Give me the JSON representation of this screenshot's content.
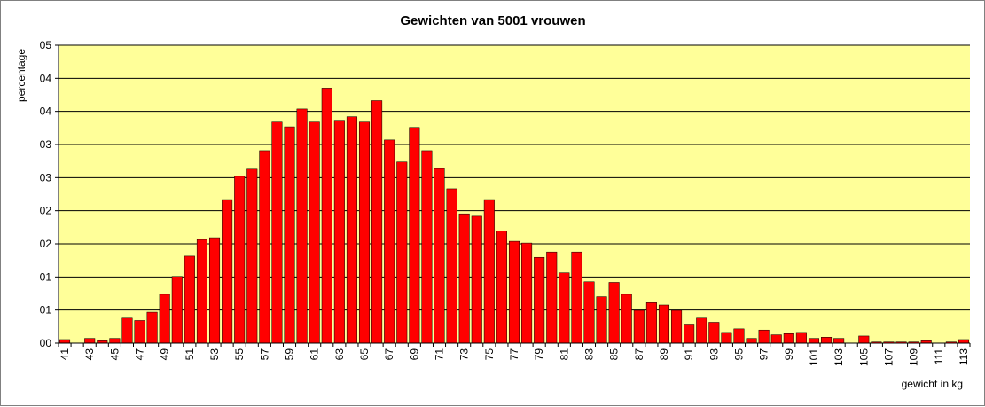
{
  "chart_data": {
    "type": "bar",
    "title": "Gewichten van 5001 vrouwen",
    "xlabel": "gewicht in kg",
    "ylabel": "percentage",
    "ylim": [
      0,
      0.05
    ],
    "ytick_labels": [
      "0,00",
      "0,01",
      "0,01",
      "0,02",
      "0,02",
      "0,03",
      "0,03",
      "0,04",
      "0,04",
      "0,05"
    ],
    "ytick_display": [
      "00",
      "01",
      "01",
      "02",
      "02",
      "03",
      "03",
      "04",
      "04",
      "05"
    ],
    "categories": [
      41,
      42,
      43,
      44,
      45,
      46,
      47,
      48,
      49,
      50,
      51,
      52,
      53,
      54,
      55,
      56,
      57,
      58,
      59,
      60,
      61,
      62,
      63,
      64,
      65,
      66,
      67,
      68,
      69,
      70,
      71,
      72,
      73,
      74,
      75,
      76,
      77,
      78,
      79,
      80,
      81,
      82,
      83,
      84,
      85,
      86,
      87,
      88,
      89,
      90,
      91,
      92,
      93,
      94,
      95,
      96,
      97,
      98,
      99,
      100,
      101,
      102,
      103,
      104,
      105,
      106,
      107,
      108,
      109,
      110,
      111,
      112,
      113
    ],
    "x_tick_labels": [
      "41",
      "43",
      "45",
      "47",
      "49",
      "51",
      "53",
      "55",
      "57",
      "59",
      "61",
      "63",
      "65",
      "67",
      "69",
      "71",
      "73",
      "75",
      "77",
      "79",
      "81",
      "83",
      "85",
      "87",
      "89",
      "91",
      "93",
      "95",
      "97",
      "99",
      "101",
      "103",
      "105",
      "107",
      "109",
      "111",
      "113"
    ],
    "values": [
      0.0006,
      0.0,
      0.0008,
      0.0004,
      0.0008,
      0.0042,
      0.0038,
      0.0052,
      0.0082,
      0.0112,
      0.0146,
      0.0174,
      0.0177,
      0.0241,
      0.028,
      0.0292,
      0.0323,
      0.0371,
      0.0363,
      0.0393,
      0.0371,
      0.0428,
      0.0374,
      0.038,
      0.0371,
      0.0407,
      0.0341,
      0.0304,
      0.0362,
      0.0323,
      0.0293,
      0.0259,
      0.0217,
      0.0213,
      0.0241,
      0.0188,
      0.0171,
      0.0168,
      0.0144,
      0.0153,
      0.0118,
      0.0153,
      0.0103,
      0.0078,
      0.0102,
      0.0082,
      0.0055,
      0.0068,
      0.0064,
      0.0055,
      0.0032,
      0.0042,
      0.0035,
      0.0018,
      0.0024,
      0.0008,
      0.0022,
      0.0014,
      0.0016,
      0.0018,
      0.0008,
      0.001,
      0.0008,
      0.0,
      0.0012,
      0.0002,
      0.0002,
      0.0002,
      0.0002,
      0.0004,
      0.0,
      0.0002,
      0.0006
    ],
    "grid": true,
    "plot_background": "#ffff99",
    "bar_color": "#ff0000",
    "bar_edge_color": "#000000"
  }
}
